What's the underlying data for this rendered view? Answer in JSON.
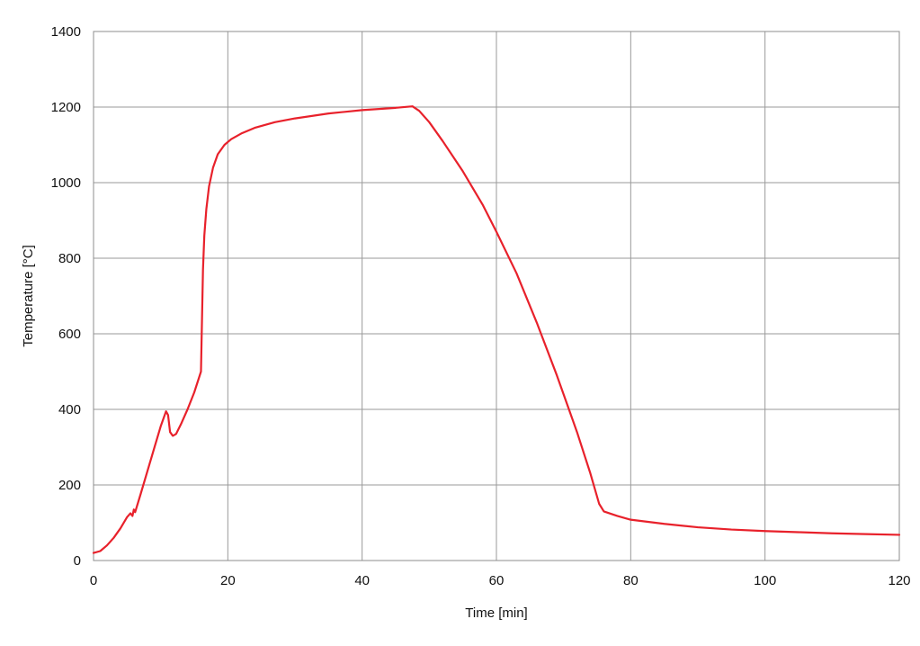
{
  "chart_data": {
    "type": "line",
    "xlabel": "Time [min]",
    "ylabel": "Temperature [°C]",
    "xlim": [
      0,
      120
    ],
    "ylim": [
      0,
      1400
    ],
    "xticks": [
      0,
      20,
      40,
      60,
      80,
      100,
      120
    ],
    "yticks": [
      0,
      200,
      400,
      600,
      800,
      1000,
      1200,
      1400
    ],
    "grid": true,
    "series": [
      {
        "color": "#e8212b",
        "x": [
          0,
          1,
          2,
          3,
          4,
          5,
          5.5,
          5.8,
          6.0,
          6.2,
          7,
          8,
          9,
          10,
          10.8,
          11.1,
          11.4,
          11.8,
          12.3,
          13,
          14,
          15,
          16.0,
          16.3,
          16.5,
          16.8,
          17.2,
          17.8,
          18.5,
          19.5,
          20.5,
          22,
          24,
          27,
          30,
          35,
          40,
          45,
          47.5,
          48.5,
          50,
          52,
          55,
          58,
          60,
          63,
          66,
          69,
          72,
          74,
          75.3,
          76,
          78,
          80,
          85,
          90,
          95,
          100,
          105,
          110,
          115,
          120
        ],
        "y": [
          20,
          25,
          40,
          60,
          85,
          115,
          125,
          118,
          135,
          128,
          175,
          235,
          295,
          355,
          395,
          385,
          340,
          330,
          335,
          360,
          400,
          445,
          500,
          770,
          860,
          930,
          990,
          1040,
          1075,
          1100,
          1115,
          1130,
          1145,
          1160,
          1170,
          1183,
          1192,
          1198,
          1202,
          1190,
          1160,
          1110,
          1030,
          940,
          870,
          760,
          630,
          490,
          340,
          230,
          150,
          130,
          118,
          108,
          97,
          88,
          82,
          78,
          75,
          72,
          70,
          68
        ]
      }
    ]
  }
}
